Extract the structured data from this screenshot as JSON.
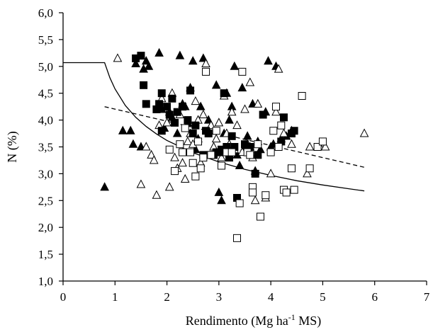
{
  "chart_data": {
    "type": "scatter",
    "title": "",
    "xlabel": "Rendimento (Mg ha⁻¹ MS)",
    "ylabel": "N (%)",
    "xlim": [
      0,
      7
    ],
    "ylim": [
      1.0,
      6.0
    ],
    "xticks": [
      0,
      1,
      2,
      3,
      4,
      5,
      6,
      7
    ],
    "xtick_labels": [
      "0",
      "1",
      "2",
      "3",
      "4",
      "5",
      "6",
      "7"
    ],
    "yticks": [
      1.0,
      1.5,
      2.0,
      2.5,
      3.0,
      3.5,
      4.0,
      4.5,
      5.0,
      5.5,
      6.0
    ],
    "ytick_labels": [
      "1,0",
      "1,5",
      "2,0",
      "2,5",
      "3,0",
      "3,5",
      "4,0",
      "4,5",
      "5,0",
      "5,5",
      "6,0"
    ],
    "grid": false,
    "legend": "none",
    "series": [
      {
        "marker": "filled-triangle",
        "points": [
          [
            0.8,
            2.75
          ],
          [
            1.15,
            3.8
          ],
          [
            1.3,
            3.8
          ],
          [
            1.35,
            3.55
          ],
          [
            1.4,
            5.05
          ],
          [
            1.5,
            3.5
          ],
          [
            1.55,
            4.95
          ],
          [
            1.6,
            5.1
          ],
          [
            1.65,
            5.0
          ],
          [
            1.85,
            5.25
          ],
          [
            1.9,
            4.2
          ],
          [
            1.95,
            3.85
          ],
          [
            2.05,
            4.15
          ],
          [
            2.1,
            4.05
          ],
          [
            2.2,
            3.75
          ],
          [
            2.25,
            5.2
          ],
          [
            2.3,
            4.3
          ],
          [
            2.35,
            4.25
          ],
          [
            2.4,
            3.95
          ],
          [
            2.45,
            4.6
          ],
          [
            2.5,
            5.1
          ],
          [
            2.55,
            3.45
          ],
          [
            2.6,
            3.65
          ],
          [
            2.65,
            4.25
          ],
          [
            2.7,
            5.15
          ],
          [
            2.8,
            4.0
          ],
          [
            2.85,
            3.9
          ],
          [
            2.95,
            4.65
          ],
          [
            3.0,
            2.65
          ],
          [
            3.05,
            2.5
          ],
          [
            3.1,
            3.75
          ],
          [
            3.15,
            4.5
          ],
          [
            3.2,
            4.0
          ],
          [
            3.25,
            4.25
          ],
          [
            3.3,
            5.0
          ],
          [
            3.35,
            3.35
          ],
          [
            3.4,
            3.15
          ],
          [
            3.45,
            4.6
          ],
          [
            3.5,
            3.5
          ],
          [
            3.55,
            3.7
          ],
          [
            3.6,
            3.5
          ],
          [
            3.65,
            4.3
          ],
          [
            3.7,
            3.05
          ],
          [
            3.75,
            3.6
          ],
          [
            3.8,
            3.45
          ],
          [
            3.9,
            4.15
          ],
          [
            3.95,
            5.1
          ],
          [
            4.0,
            3.5
          ],
          [
            4.05,
            3.55
          ],
          [
            4.1,
            5.0
          ],
          [
            4.2,
            3.65
          ],
          [
            4.3,
            3.7
          ],
          [
            4.4,
            3.8
          ]
        ]
      },
      {
        "marker": "open-triangle",
        "points": [
          [
            1.05,
            5.15
          ],
          [
            1.5,
            2.8
          ],
          [
            1.6,
            3.5
          ],
          [
            1.7,
            3.35
          ],
          [
            1.75,
            3.25
          ],
          [
            1.8,
            2.6
          ],
          [
            1.85,
            3.9
          ],
          [
            1.9,
            4.4
          ],
          [
            2.0,
            3.95
          ],
          [
            2.05,
            2.75
          ],
          [
            2.1,
            4.5
          ],
          [
            2.15,
            3.3
          ],
          [
            2.2,
            3.1
          ],
          [
            2.25,
            4.1
          ],
          [
            2.3,
            3.2
          ],
          [
            2.35,
            2.9
          ],
          [
            2.4,
            3.6
          ],
          [
            2.45,
            3.75
          ],
          [
            2.5,
            3.55
          ],
          [
            2.55,
            4.35
          ],
          [
            2.6,
            4.0
          ],
          [
            2.65,
            3.2
          ],
          [
            2.7,
            4.1
          ],
          [
            2.75,
            5.05
          ],
          [
            2.8,
            3.8
          ],
          [
            2.85,
            3.9
          ],
          [
            2.9,
            3.5
          ],
          [
            2.95,
            3.65
          ],
          [
            3.0,
            3.95
          ],
          [
            3.05,
            3.3
          ],
          [
            3.1,
            4.45
          ],
          [
            3.15,
            3.75
          ],
          [
            3.2,
            3.55
          ],
          [
            3.25,
            4.15
          ],
          [
            3.3,
            3.45
          ],
          [
            3.35,
            3.9
          ],
          [
            3.45,
            3.4
          ],
          [
            3.5,
            4.2
          ],
          [
            3.55,
            3.55
          ],
          [
            3.6,
            4.7
          ],
          [
            3.65,
            3.3
          ],
          [
            3.7,
            2.5
          ],
          [
            3.75,
            4.3
          ],
          [
            3.9,
            2.55
          ],
          [
            4.0,
            3.0
          ],
          [
            4.1,
            4.15
          ],
          [
            4.15,
            4.95
          ],
          [
            4.25,
            3.75
          ],
          [
            4.4,
            3.55
          ],
          [
            4.7,
            3.0
          ],
          [
            4.75,
            3.5
          ],
          [
            4.95,
            3.5
          ],
          [
            5.05,
            3.5
          ],
          [
            5.8,
            3.75
          ]
        ]
      },
      {
        "marker": "filled-square",
        "points": [
          [
            1.4,
            5.15
          ],
          [
            1.5,
            5.2
          ],
          [
            1.55,
            4.65
          ],
          [
            1.6,
            4.3
          ],
          [
            1.8,
            4.2
          ],
          [
            1.85,
            4.3
          ],
          [
            1.9,
            4.5
          ],
          [
            1.9,
            3.8
          ],
          [
            2.0,
            4.25
          ],
          [
            2.05,
            4.1
          ],
          [
            2.1,
            4.4
          ],
          [
            2.15,
            3.95
          ],
          [
            2.2,
            4.15
          ],
          [
            2.3,
            4.25
          ],
          [
            2.4,
            4.0
          ],
          [
            2.45,
            4.55
          ],
          [
            2.5,
            3.75
          ],
          [
            2.55,
            3.9
          ],
          [
            2.7,
            3.35
          ],
          [
            2.75,
            3.8
          ],
          [
            2.8,
            3.75
          ],
          [
            2.85,
            3.35
          ],
          [
            2.9,
            3.35
          ],
          [
            2.95,
            3.4
          ],
          [
            3.0,
            3.4
          ],
          [
            3.05,
            3.45
          ],
          [
            3.1,
            4.5
          ],
          [
            3.15,
            3.5
          ],
          [
            3.2,
            3.3
          ],
          [
            3.25,
            3.7
          ],
          [
            3.3,
            3.5
          ],
          [
            3.35,
            2.55
          ],
          [
            3.5,
            3.55
          ],
          [
            3.6,
            3.5
          ],
          [
            3.7,
            3.0
          ],
          [
            3.75,
            3.35
          ],
          [
            3.85,
            4.1
          ],
          [
            4.2,
            3.6
          ],
          [
            4.25,
            4.05
          ],
          [
            4.4,
            3.75
          ],
          [
            4.45,
            3.8
          ]
        ]
      },
      {
        "marker": "open-square",
        "points": [
          [
            2.05,
            3.45
          ],
          [
            2.15,
            3.05
          ],
          [
            2.25,
            3.55
          ],
          [
            2.3,
            3.4
          ],
          [
            2.35,
            3.85
          ],
          [
            2.45,
            3.4
          ],
          [
            2.5,
            3.2
          ],
          [
            2.55,
            2.95
          ],
          [
            2.6,
            3.6
          ],
          [
            2.65,
            3.1
          ],
          [
            2.7,
            3.3
          ],
          [
            2.75,
            4.9
          ],
          [
            2.85,
            3.35
          ],
          [
            2.95,
            3.8
          ],
          [
            3.05,
            3.15
          ],
          [
            3.15,
            3.4
          ],
          [
            3.25,
            3.4
          ],
          [
            3.35,
            1.8
          ],
          [
            3.4,
            2.45
          ],
          [
            3.45,
            4.9
          ],
          [
            3.55,
            3.4
          ],
          [
            3.6,
            3.35
          ],
          [
            3.65,
            2.75
          ],
          [
            3.65,
            2.65
          ],
          [
            3.75,
            3.55
          ],
          [
            3.8,
            2.2
          ],
          [
            3.9,
            2.6
          ],
          [
            4.0,
            3.4
          ],
          [
            4.05,
            3.8
          ],
          [
            4.1,
            4.25
          ],
          [
            4.15,
            3.5
          ],
          [
            4.2,
            3.9
          ],
          [
            4.25,
            2.7
          ],
          [
            4.3,
            2.65
          ],
          [
            4.45,
            2.7
          ],
          [
            4.6,
            4.45
          ],
          [
            4.4,
            3.1
          ],
          [
            4.75,
            3.1
          ],
          [
            4.9,
            3.5
          ],
          [
            5.0,
            3.6
          ]
        ]
      }
    ],
    "curves": [
      {
        "style": "solid",
        "description": "critical N dilution curve: plateau at 5.07 until x = 0.8, then decreasing power curve to about 2.7 at x = 5.8",
        "points": [
          [
            0.0,
            5.07
          ],
          [
            0.8,
            5.07
          ],
          [
            0.9,
            4.79
          ],
          [
            1.0,
            4.58
          ],
          [
            1.2,
            4.27
          ],
          [
            1.4,
            4.05
          ],
          [
            1.6,
            3.88
          ],
          [
            1.8,
            3.74
          ],
          [
            2.0,
            3.62
          ],
          [
            2.5,
            3.39
          ],
          [
            3.0,
            3.22
          ],
          [
            3.5,
            3.08
          ],
          [
            4.0,
            2.97
          ],
          [
            4.5,
            2.87
          ],
          [
            5.0,
            2.79
          ],
          [
            5.5,
            2.72
          ],
          [
            5.8,
            2.68
          ]
        ]
      },
      {
        "style": "dashed",
        "description": "linear trend line",
        "points": [
          [
            0.8,
            4.25
          ],
          [
            5.8,
            3.12
          ]
        ]
      }
    ]
  }
}
